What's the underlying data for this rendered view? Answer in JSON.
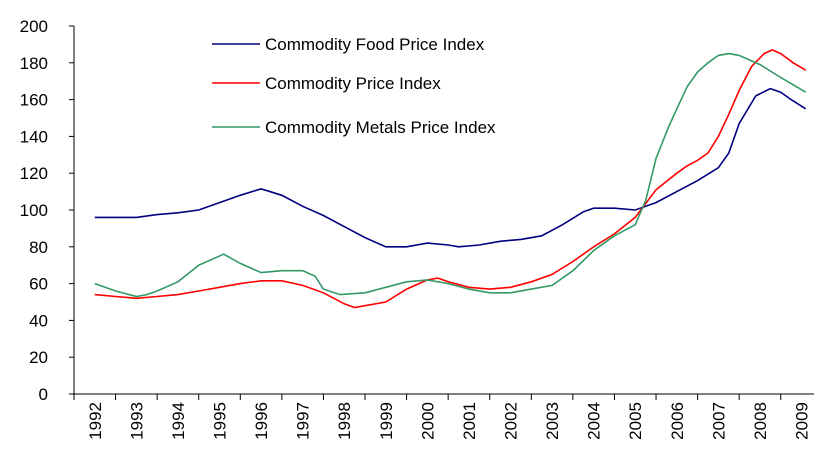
{
  "chart_data": {
    "type": "line",
    "xlim": [
      1992,
      2009.8
    ],
    "xticks": [
      1992,
      1993,
      1994,
      1995,
      1996,
      1997,
      1998,
      1999,
      2000,
      2001,
      2002,
      2003,
      2004,
      2005,
      2006,
      2007,
      2008,
      2009
    ],
    "ylim": [
      0,
      200
    ],
    "yticks": [
      0,
      20,
      40,
      60,
      80,
      100,
      120,
      140,
      160,
      180,
      200
    ],
    "grid": false,
    "legend": "upper left",
    "series": [
      {
        "name": "Commodity Food Price Index",
        "color": "#000080",
        "x": [
          1992.5,
          1993,
          1993.5,
          1994,
          1994.5,
          1995,
          1995.5,
          1996,
          1996.5,
          1997,
          1997.5,
          1998,
          1998.5,
          1999,
          1999.5,
          2000,
          2000.5,
          2001,
          2001.25,
          2001.75,
          2002.25,
          2002.75,
          2003.25,
          2003.75,
          2004.25,
          2004.5,
          2005,
          2005.5,
          2006,
          2006.5,
          2007,
          2007.5,
          2007.75,
          2008,
          2008.4,
          2008.75,
          2009,
          2009.25,
          2009.6
        ],
        "values": [
          96,
          96,
          96,
          97.5,
          98.5,
          100,
          104,
          108,
          111.5,
          108,
          102,
          97,
          91,
          85,
          80,
          80,
          82,
          81,
          80,
          81,
          83,
          84,
          86,
          92,
          99,
          101,
          101,
          100,
          104,
          110,
          116,
          123,
          131,
          147,
          162,
          166,
          164,
          160,
          155
        ]
      },
      {
        "name": "Commodity Price Index",
        "color": "#ff0000",
        "x": [
          1992.5,
          1993,
          1993.5,
          1994,
          1994.5,
          1995,
          1995.5,
          1996,
          1996.5,
          1997,
          1997.5,
          1998,
          1998.5,
          1998.75,
          1999,
          1999.5,
          2000,
          2000.5,
          2000.75,
          2001,
          2001.5,
          2002,
          2002.5,
          2003,
          2003.5,
          2004,
          2004.5,
          2005,
          2005.5,
          2006,
          2006.5,
          2006.75,
          2007,
          2007.25,
          2007.5,
          2007.75,
          2008,
          2008.3,
          2008.6,
          2008.8,
          2009,
          2009.3,
          2009.6
        ],
        "values": [
          54,
          53,
          52,
          53,
          54,
          56,
          58,
          60,
          61.5,
          61.5,
          59,
          55,
          49,
          47,
          48,
          50,
          57,
          62,
          63,
          61,
          58,
          57,
          58,
          61,
          65,
          72,
          80,
          87,
          96,
          111,
          120,
          124,
          127,
          131,
          140,
          152,
          165,
          178,
          185,
          187,
          185,
          180,
          176
        ]
      },
      {
        "name": "Commodity Metals Price Index",
        "color": "#339966",
        "x": [
          1992.5,
          1993,
          1993.5,
          1993.75,
          1994,
          1994.5,
          1995,
          1995.6,
          1996,
          1996.5,
          1997,
          1997.5,
          1997.8,
          1998,
          1998.4,
          1999,
          1999.5,
          2000,
          2000.5,
          2001,
          2001.5,
          2002,
          2002.5,
          2003,
          2003.5,
          2004,
          2004.5,
          2005,
          2005.5,
          2005.75,
          2006,
          2006.3,
          2006.5,
          2006.75,
          2007,
          2007.25,
          2007.5,
          2007.75,
          2008,
          2008.5,
          2009,
          2009.6
        ],
        "values": [
          60,
          56,
          53,
          54,
          56,
          61,
          70,
          76,
          71,
          66,
          67,
          67,
          64,
          57,
          54,
          55,
          58,
          61,
          62,
          60,
          57,
          55,
          55,
          57,
          59,
          67,
          78,
          86,
          92,
          105,
          128,
          145,
          155,
          167,
          175,
          180,
          184,
          185,
          184,
          179,
          172,
          164
        ]
      }
    ]
  }
}
